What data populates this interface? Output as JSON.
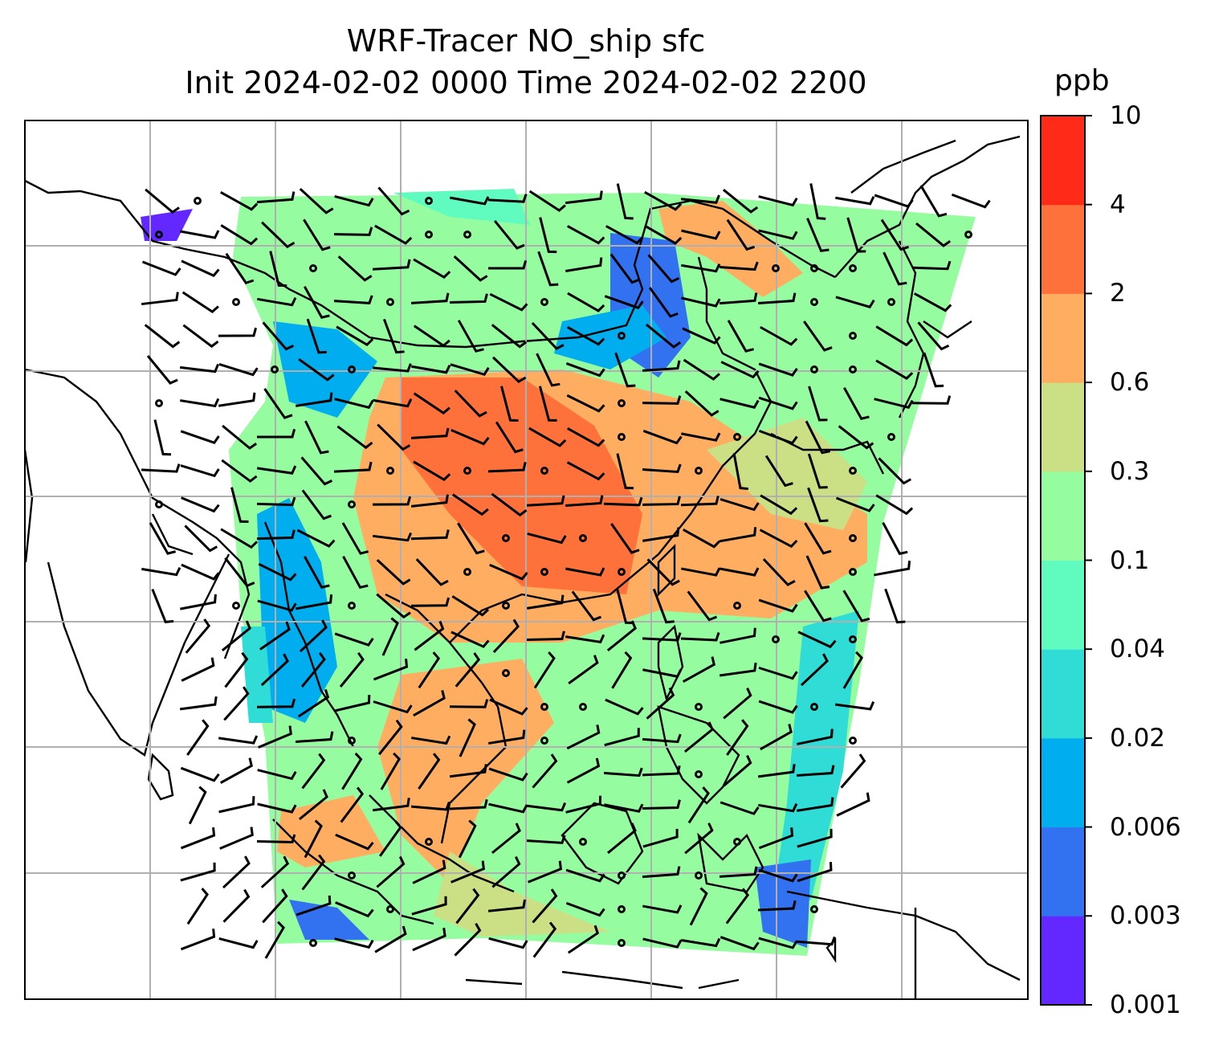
{
  "title": {
    "line1": "WRF-Tracer NO_ship sfc",
    "line2": "Init 2024-02-02 0000 Time 2024-02-02 2200"
  },
  "colorbar": {
    "unit": "ppb",
    "ticks": [
      "0.001",
      "0.003",
      "0.006",
      "0.02",
      "0.04",
      "0.1",
      "0.3",
      "0.6",
      "2",
      "4",
      "10"
    ],
    "colors": [
      "#6328ff",
      "#3272f1",
      "#00aeef",
      "#2fdcd6",
      "#60fcbf",
      "#95fc9f",
      "#cbe085",
      "#ffad60",
      "#ff713a",
      "#ff2a17"
    ]
  },
  "map": {
    "background": "#ffffff",
    "gridline_color": "#b0b0b0",
    "coastline_color": "#000000",
    "features": [
      "coastlines",
      "gridlines",
      "tracer-shading",
      "wind-barbs"
    ]
  }
}
